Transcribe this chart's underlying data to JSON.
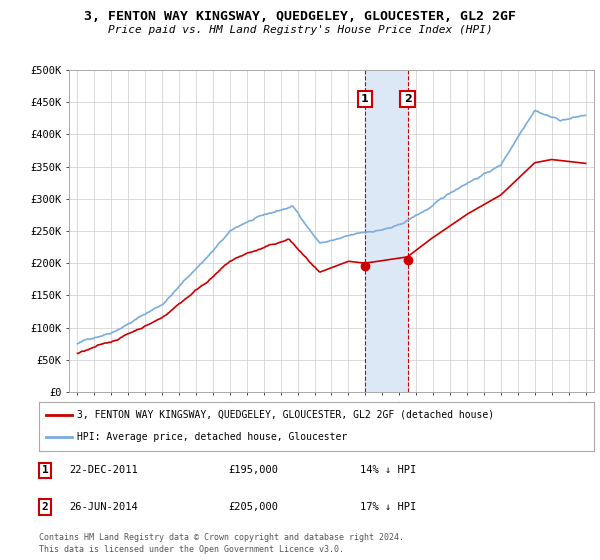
{
  "title": "3, FENTON WAY KINGSWAY, QUEDGELEY, GLOUCESTER, GL2 2GF",
  "subtitle": "Price paid vs. HM Land Registry's House Price Index (HPI)",
  "legend_line1": "3, FENTON WAY KINGSWAY, QUEDGELEY, GLOUCESTER, GL2 2GF (detached house)",
  "legend_line2": "HPI: Average price, detached house, Gloucester",
  "footnote_line1": "Contains HM Land Registry data © Crown copyright and database right 2024.",
  "footnote_line2": "This data is licensed under the Open Government Licence v3.0.",
  "sale1_date_str": "22-DEC-2011",
  "sale1_price_str": "£195,000",
  "sale1_hpi_str": "14% ↓ HPI",
  "sale2_date_str": "26-JUN-2014",
  "sale2_price_str": "£205,000",
  "sale2_hpi_str": "17% ↓ HPI",
  "red_color": "#cc0000",
  "blue_color": "#7aaddb",
  "shade_color": "#dce8f5",
  "bg_color": "#ffffff",
  "grid_color": "#cccccc",
  "ylim_min": 0,
  "ylim_max": 500000,
  "xlim_min": 1994.5,
  "xlim_max": 2025.5,
  "sale1_x": 2011.97,
  "sale1_y": 195000,
  "sale2_x": 2014.49,
  "sale2_y": 205000,
  "xtick_years": [
    1995,
    1996,
    1997,
    1998,
    1999,
    2000,
    2001,
    2002,
    2003,
    2004,
    2005,
    2006,
    2007,
    2008,
    2009,
    2010,
    2011,
    2012,
    2013,
    2014,
    2015,
    2016,
    2017,
    2018,
    2019,
    2020,
    2021,
    2022,
    2023,
    2024,
    2025
  ],
  "yticks": [
    0,
    50000,
    100000,
    150000,
    200000,
    250000,
    300000,
    350000,
    400000,
    450000,
    500000
  ],
  "ytick_labels": [
    "£0",
    "£50K",
    "£100K",
    "£150K",
    "£200K",
    "£250K",
    "£300K",
    "£350K",
    "£400K",
    "£450K",
    "£500K"
  ]
}
